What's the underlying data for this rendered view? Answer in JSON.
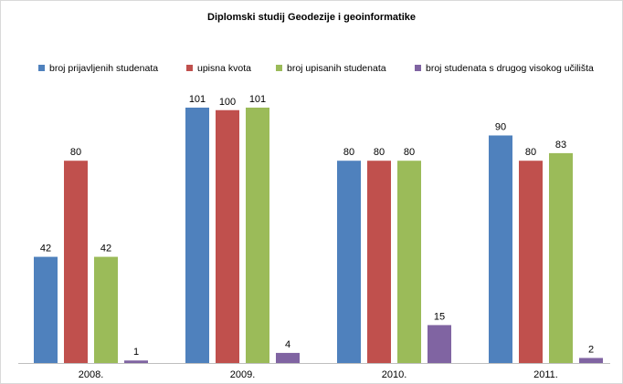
{
  "chart_data": {
    "type": "bar",
    "title": "Diplomski studij Geodezije i geoinformatike",
    "categories": [
      "2008.",
      "2009.",
      "2010.",
      "2011."
    ],
    "series": [
      {
        "name": "broj prijavljenih studenata",
        "color": "#4f81bd",
        "values": [
          42,
          101,
          80,
          90
        ]
      },
      {
        "name": "upisna kvota",
        "color": "#c0504d",
        "values": [
          80,
          100,
          80,
          80
        ]
      },
      {
        "name": "broj upisanih studenata",
        "color": "#9bbb59",
        "values": [
          42,
          101,
          80,
          83
        ]
      },
      {
        "name": "broj studenata s drugog visokog učilišta",
        "color": "#8064a2",
        "values": [
          1,
          4,
          15,
          2
        ]
      }
    ],
    "ylim": [
      0,
      120
    ],
    "grid": false,
    "legend_position": "top",
    "data_labels": true
  }
}
